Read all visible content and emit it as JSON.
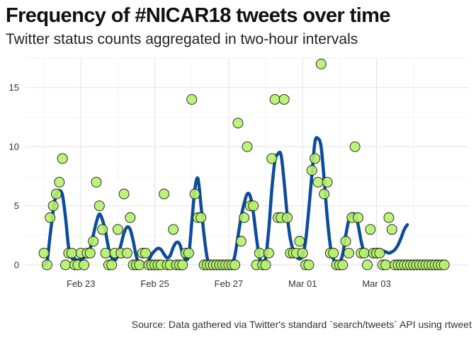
{
  "chart_data": {
    "type": "line",
    "title": "Frequency of #NICAR18 tweets over time",
    "subtitle": "Twitter status counts aggregated in two-hour intervals",
    "caption": "Source: Data gathered via Twitter's standard `search/tweets` API using rtweet",
    "xlabel": "",
    "ylabel": "",
    "grid": true,
    "x_ticks": [
      "Feb 23",
      "Feb 25",
      "Feb 27",
      "Mar 01",
      "Mar 03"
    ],
    "y_ticks": [
      0,
      5,
      10,
      15
    ],
    "ylim": [
      -0.6,
      17.5
    ],
    "xlim": [
      -6,
      138
    ],
    "x_tick_positions": [
      12,
      36,
      60,
      84,
      108
    ],
    "x_unit": "two-hour intervals starting Feb 22, 00:00",
    "colors": {
      "line": "#0D4C9A",
      "points_fill": "#B6F26B",
      "points_stroke": "#1A1A1A"
    },
    "series": [
      {
        "type": "points",
        "x": [
          0,
          1,
          2,
          3,
          4,
          5,
          6,
          7,
          8,
          9,
          10,
          11,
          12,
          13,
          14,
          15,
          16,
          17,
          18,
          19,
          20,
          21,
          22,
          23,
          24,
          25,
          26,
          27,
          28,
          29,
          30,
          31,
          32,
          33,
          34,
          35,
          36,
          37,
          38,
          39,
          40,
          41,
          42,
          43,
          44,
          45,
          46,
          47,
          48,
          49,
          50,
          51,
          52,
          53,
          54,
          55,
          56,
          57,
          58,
          59,
          60,
          61,
          62,
          63,
          64,
          65,
          66,
          67,
          68,
          69,
          70,
          71,
          72,
          73,
          74,
          75,
          76,
          77,
          78,
          79,
          80,
          81,
          82,
          83,
          84,
          85,
          86,
          87,
          88,
          89,
          90,
          91,
          92,
          93,
          94,
          95,
          96,
          97,
          98,
          99,
          100,
          101,
          102,
          103,
          104,
          105,
          106,
          107,
          108,
          109,
          110,
          111,
          112,
          113,
          114,
          115,
          116,
          117,
          118,
          119,
          120,
          121,
          122,
          123,
          124,
          125,
          126,
          127,
          128,
          129,
          130
        ],
        "y": [
          1,
          0,
          4,
          5,
          6,
          7,
          9,
          0,
          1,
          1,
          0,
          0,
          1,
          0,
          1,
          1,
          2,
          7,
          5,
          3,
          1,
          0,
          0,
          1,
          3,
          1,
          6,
          1,
          4,
          0,
          0,
          0,
          1,
          1,
          0,
          0,
          0,
          0,
          0,
          6,
          0,
          0,
          3,
          0,
          0,
          0,
          1,
          1,
          14,
          6,
          4,
          4,
          0,
          0,
          0,
          0,
          0,
          0,
          0,
          0,
          0,
          0,
          0,
          12,
          2,
          4,
          10,
          5,
          5,
          0,
          1,
          0,
          0,
          1,
          9,
          14,
          4,
          4,
          14,
          4,
          1,
          1,
          1,
          2,
          1,
          0,
          0,
          8,
          9,
          7,
          17,
          6,
          7,
          1,
          1,
          0,
          0,
          0,
          2,
          1,
          4,
          10,
          4,
          1,
          1,
          0,
          3,
          1,
          1,
          1,
          0,
          0,
          4,
          3,
          0,
          0,
          0,
          0,
          0,
          0,
          0,
          0,
          0,
          0,
          0,
          0,
          0,
          0,
          0,
          0,
          0
        ]
      },
      {
        "type": "smooth",
        "x": [
          0,
          1,
          2,
          3,
          4,
          5,
          6,
          7,
          8,
          9,
          10,
          11,
          12,
          13,
          14,
          15,
          16,
          17,
          18,
          19,
          20,
          21,
          22,
          23,
          24,
          25,
          26,
          27,
          28,
          29,
          30,
          31,
          32,
          33,
          34,
          35,
          36,
          37,
          38,
          39,
          40,
          41,
          42,
          43,
          44,
          45,
          46,
          47,
          48,
          49,
          50,
          51,
          52,
          53,
          54,
          55,
          56,
          57,
          58,
          59,
          60,
          61,
          62,
          63,
          64,
          65,
          66,
          67,
          68,
          69,
          70,
          71,
          72,
          73,
          74,
          75,
          76,
          77,
          78,
          79,
          80,
          81,
          82,
          83,
          84,
          85,
          86,
          87,
          88,
          89,
          90,
          91,
          92,
          93,
          94,
          95,
          96,
          97,
          98,
          99,
          100,
          101,
          102,
          103,
          104,
          105,
          106,
          107,
          108,
          109,
          110,
          111,
          112,
          113,
          114,
          115,
          116,
          117,
          118
        ],
        "y": [
          0,
          0.3,
          2.5,
          4.6,
          6,
          6.3,
          5.9,
          4,
          1.5,
          0.6,
          0.5,
          0.4,
          0.5,
          0.6,
          0.9,
          1.4,
          2.5,
          3.6,
          4.3,
          3.8,
          2.8,
          1.4,
          0.6,
          0.4,
          0.8,
          1.7,
          2.7,
          3.2,
          3,
          2,
          0.7,
          0.1,
          0,
          0.1,
          0.4,
          0.9,
          1.2,
          1.4,
          1.3,
          0.9,
          0.6,
          0.8,
          1.5,
          1.9,
          1.8,
          1,
          0.5,
          0.8,
          3.6,
          6.4,
          7.3,
          5,
          2.5,
          0.6,
          0,
          0,
          0,
          0,
          0,
          0,
          0,
          0,
          0.8,
          2.4,
          4,
          5.2,
          6,
          5.8,
          4.4,
          2.3,
          0.6,
          0.3,
          0.6,
          3,
          6.4,
          8.8,
          9.4,
          9.3,
          7,
          4.2,
          2.2,
          1.2,
          0.7,
          0.5,
          0.8,
          2.1,
          4.7,
          7.6,
          10.4,
          10.7,
          10,
          7.2,
          4,
          1.6,
          0.5,
          0.2,
          0.2,
          0.9,
          2.5,
          3.8,
          4.3,
          4.2,
          3.4,
          2,
          1.1,
          0.9,
          1,
          1.2,
          1.3,
          1.3,
          1.2,
          1.1,
          1,
          1.1,
          1.3,
          1.7,
          2.3,
          3,
          3.4
        ]
      }
    ]
  }
}
